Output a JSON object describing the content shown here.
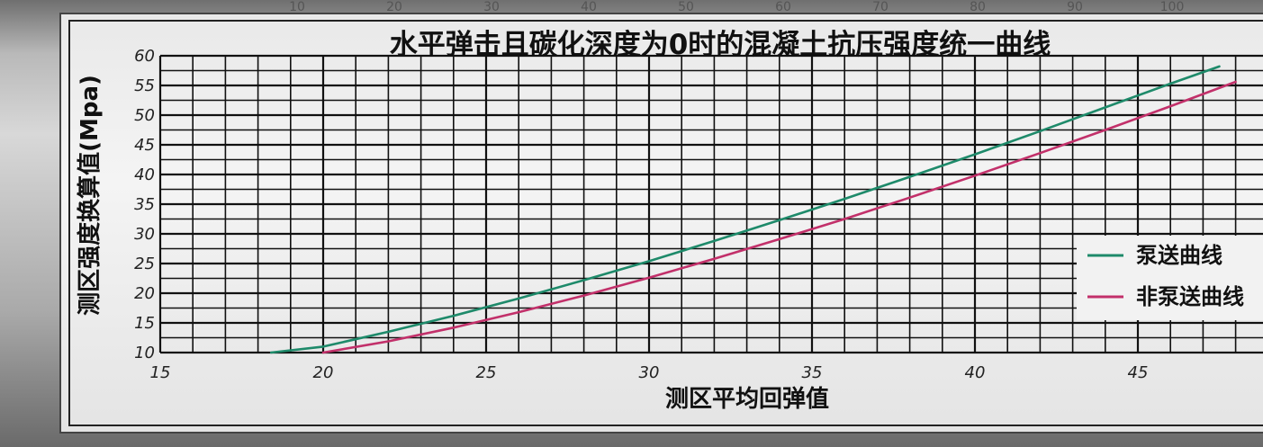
{
  "chart_data": {
    "type": "line",
    "title": "水平弹击且碳化深度为0时的混凝土抗压强度统一曲线",
    "xlabel": "测区平均回弹值",
    "ylabel": "测区强度换算值(Mpa)",
    "xlim": [
      15,
      48
    ],
    "ylim": [
      10,
      60
    ],
    "x_ticks": [
      "15",
      "20",
      "25",
      "30",
      "35",
      "40",
      "45"
    ],
    "y_ticks": [
      "10",
      "15",
      "20",
      "25",
      "30",
      "35",
      "40",
      "45",
      "50",
      "55",
      "60"
    ],
    "grid": true,
    "legend_position": "right",
    "top_ruler": [
      "10",
      "20",
      "30",
      "40",
      "50",
      "60",
      "70",
      "80",
      "90",
      "100"
    ],
    "series": [
      {
        "name": "泵送曲线",
        "color": "#1e8a6a",
        "x": [
          18.4,
          20,
          22,
          24,
          26,
          28,
          30,
          32,
          34,
          36,
          38,
          40,
          42,
          44,
          46,
          47.5
        ],
        "y": [
          10.0,
          11.0,
          13.5,
          16.2,
          19.1,
          22.2,
          25.4,
          28.8,
          32.3,
          35.9,
          39.6,
          43.4,
          47.3,
          51.3,
          55.3,
          58.2
        ]
      },
      {
        "name": "非泵送曲线",
        "color": "#c2306a",
        "x": [
          20.0,
          22,
          24,
          26,
          28,
          30,
          32,
          34,
          36,
          38,
          40,
          42,
          44,
          46,
          48
        ],
        "y": [
          10.0,
          11.9,
          14.2,
          16.8,
          19.6,
          22.6,
          25.8,
          29.1,
          32.5,
          36.1,
          39.8,
          43.6,
          47.5,
          51.5,
          55.6
        ]
      }
    ]
  }
}
